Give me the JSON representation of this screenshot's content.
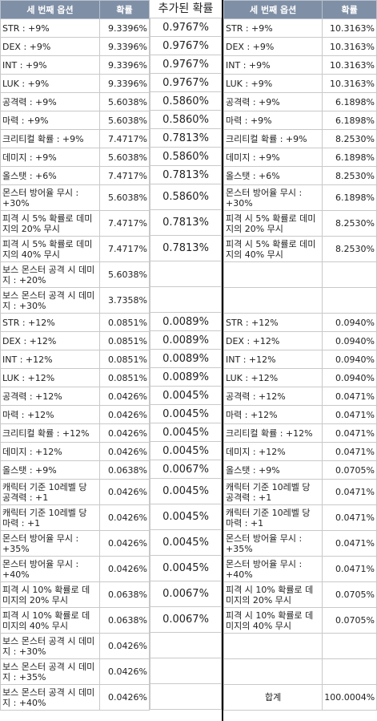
{
  "headers": {
    "opt": "세 번째 옵션",
    "prob": "확률",
    "added": "추가된 확률",
    "opt2": "세 번째 옵션",
    "prob2": "확률"
  },
  "left_rows": [
    {
      "label": "STR : +9%",
      "value": "9.3396%",
      "h": 22
    },
    {
      "label": "DEX : +9%",
      "value": "9.3396%",
      "h": 22
    },
    {
      "label": "INT : +9%",
      "value": "9.3396%",
      "h": 22
    },
    {
      "label": "LUK : +9%",
      "value": "9.3396%",
      "h": 22
    },
    {
      "label": "공격력 : +9%",
      "value": "5.6038%",
      "h": 22
    },
    {
      "label": "마력 : +9%",
      "value": "5.6038%",
      "h": 22
    },
    {
      "label": "크리티컬 확률 : +9%",
      "value": "7.4717%",
      "h": 22
    },
    {
      "label": "데미지 : +9%",
      "value": "5.6038%",
      "h": 22
    },
    {
      "label": "올스탯 : +6%",
      "value": "7.4717%",
      "h": 22
    },
    {
      "label": "몬스터 방어율 무시 : +30%",
      "value": "5.6038%",
      "h": 31
    },
    {
      "label": "피격 시 5% 확률로 데미지의 20% 무시",
      "value": "7.4717%",
      "h": 31
    },
    {
      "label": "피격 시 5% 확률로 데미지의 40% 무시",
      "value": "7.4717%",
      "h": 31
    },
    {
      "label": "보스 몬스터 공격 시 데미지 : +20%",
      "value": "5.6038%",
      "h": 31
    },
    {
      "label": "보스 몬스터 공격 시 데미지 : +30%",
      "value": "3.7358%",
      "h": 31
    },
    {
      "label": "STR : +12%",
      "value": "0.0851%",
      "h": 22
    },
    {
      "label": "DEX : +12%",
      "value": "0.0851%",
      "h": 22
    },
    {
      "label": "INT : +12%",
      "value": "0.0851%",
      "h": 22
    },
    {
      "label": "LUK : +12%",
      "value": "0.0851%",
      "h": 22
    },
    {
      "label": "공격력 : +12%",
      "value": "0.0426%",
      "h": 22
    },
    {
      "label": "마력 : +12%",
      "value": "0.0426%",
      "h": 22
    },
    {
      "label": "크리티컬 확률 : +12%",
      "value": "0.0426%",
      "h": 22
    },
    {
      "label": "데미지 : +12%",
      "value": "0.0426%",
      "h": 22
    },
    {
      "label": "올스탯 : +9%",
      "value": "0.0638%",
      "h": 22
    },
    {
      "label": "캐릭터 기준 10레벨 당 공격력 : +1",
      "value": "0.0426%",
      "h": 31
    },
    {
      "label": "캐릭터 기준 10레벨 당 마력 : +1",
      "value": "0.0426%",
      "h": 31
    },
    {
      "label": "몬스터 방어율 무시 : +35%",
      "value": "0.0426%",
      "h": 31
    },
    {
      "label": "몬스터 방어율 무시 : +40%",
      "value": "0.0426%",
      "h": 31
    },
    {
      "label": "피격 시 10% 확률로 데미지의 20% 무시",
      "value": "0.0638%",
      "h": 31
    },
    {
      "label": "피격 시 10% 확률로 데미지의 40% 무시",
      "value": "0.0638%",
      "h": 31
    },
    {
      "label": "보스 몬스터 공격 시 데미지 : +30%",
      "value": "0.0426%",
      "h": 31
    },
    {
      "label": "보스 몬스터 공격 시 데미지 : +35%",
      "value": "0.0426%",
      "h": 31
    },
    {
      "label": "보스 몬스터 공격 시 데미지 : +40%",
      "value": "0.0426%",
      "h": 31
    }
  ],
  "mid_rows": [
    "0.9767%",
    "0.9767%",
    "0.9767%",
    "0.9767%",
    "0.5860%",
    "0.5860%",
    "0.7813%",
    "0.5860%",
    "0.7813%",
    "0.5860%",
    "0.7813%",
    "0.7813%",
    "",
    "",
    "0.0089%",
    "0.0089%",
    "0.0089%",
    "0.0089%",
    "0.0045%",
    "0.0045%",
    "0.0045%",
    "0.0045%",
    "0.0067%",
    "0.0045%",
    "0.0045%",
    "0.0045%",
    "0.0045%",
    "0.0067%",
    "0.0067%",
    "",
    "",
    ""
  ],
  "right_rows": [
    {
      "label": "STR : +9%",
      "value": "10.3163%"
    },
    {
      "label": "DEX : +9%",
      "value": "10.3163%"
    },
    {
      "label": "INT : +9%",
      "value": "10.3163%"
    },
    {
      "label": "LUK : +9%",
      "value": "10.3163%"
    },
    {
      "label": "공격력 : +9%",
      "value": "6.1898%"
    },
    {
      "label": "마력 : +9%",
      "value": "6.1898%"
    },
    {
      "label": "크리티컬 확률 : +9%",
      "value": "8.2530%"
    },
    {
      "label": "데미지 : +9%",
      "value": "6.1898%"
    },
    {
      "label": "올스탯 : +6%",
      "value": "8.2530%"
    },
    {
      "label": "몬스터 방어율 무시 : +30%",
      "value": "6.1898%"
    },
    {
      "label": "피격 시 5% 확률로 데미지의 20% 무시",
      "value": "8.2530%"
    },
    {
      "label": "피격 시 5% 확률로 데미지의 40% 무시",
      "value": "8.2530%"
    },
    {
      "label": "",
      "value": ""
    },
    {
      "label": "",
      "value": ""
    },
    {
      "label": "STR : +12%",
      "value": "0.0940%"
    },
    {
      "label": "DEX : +12%",
      "value": "0.0940%"
    },
    {
      "label": "INT : +12%",
      "value": "0.0940%"
    },
    {
      "label": "LUK : +12%",
      "value": "0.0940%"
    },
    {
      "label": "공격력 : +12%",
      "value": "0.0471%"
    },
    {
      "label": "마력 : +12%",
      "value": "0.0471%"
    },
    {
      "label": "크리티컬 확률 : +12%",
      "value": "0.0471%"
    },
    {
      "label": "데미지 : +12%",
      "value": "0.0471%"
    },
    {
      "label": "올스탯 : +9%",
      "value": "0.0705%"
    },
    {
      "label": "캐릭터 기준 10레벨 당 공격력 : +1",
      "value": "0.0471%"
    },
    {
      "label": "캐릭터 기준 10레벨 당 마력 : +1",
      "value": "0.0471%"
    },
    {
      "label": "몬스터 방어율 무시 : +35%",
      "value": "0.0471%"
    },
    {
      "label": "몬스터 방어율 무시 : +40%",
      "value": "0.0471%"
    },
    {
      "label": "피격 시 10% 확률로 데미지의 20% 무시",
      "value": "0.0705%"
    },
    {
      "label": "피격 시 10% 확률로 데미지의 40% 무시",
      "value": "0.0705%"
    },
    {
      "label": "",
      "value": ""
    },
    {
      "label": "",
      "value": ""
    },
    {
      "label": "합계",
      "value": "100.0004%"
    }
  ]
}
